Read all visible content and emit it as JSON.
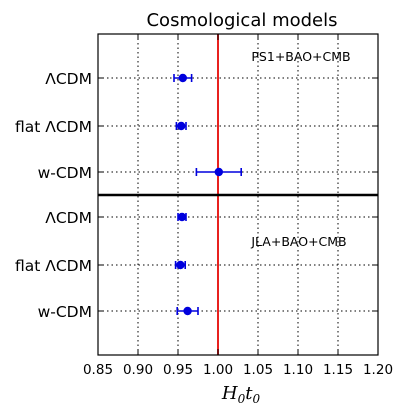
{
  "chart_data": {
    "type": "scatter",
    "title": "Cosmological models",
    "xlabel": "H₀t₀",
    "xlim": [
      0.85,
      1.2
    ],
    "xticks": [
      "0.85",
      "0.90",
      "0.95",
      "1.00",
      "1.05",
      "1.10",
      "1.15",
      "1.20"
    ],
    "grid": true,
    "reference_line": {
      "x": 1.0,
      "color": "#e8211f"
    },
    "panels": [
      {
        "annotation": "PS1+BAO+CMB",
        "rows": [
          {
            "label": "ΛCDM",
            "value": 0.956,
            "err_low": 0.011,
            "err_high": 0.011
          },
          {
            "label": "flat ΛCDM",
            "value": 0.954,
            "err_low": 0.006,
            "err_high": 0.006
          },
          {
            "label": "w-CDM",
            "value": 1.001,
            "err_low": 0.028,
            "err_high": 0.028
          }
        ]
      },
      {
        "annotation": "JLA+BAO+CMB",
        "rows": [
          {
            "label": "ΛCDM",
            "value": 0.955,
            "err_low": 0.005,
            "err_high": 0.005
          },
          {
            "label": "flat ΛCDM",
            "value": 0.953,
            "err_low": 0.006,
            "err_high": 0.006
          },
          {
            "label": "w-CDM",
            "value": 0.962,
            "err_low": 0.013,
            "err_high": 0.013
          }
        ]
      }
    ],
    "point_color": "#0000dd"
  }
}
